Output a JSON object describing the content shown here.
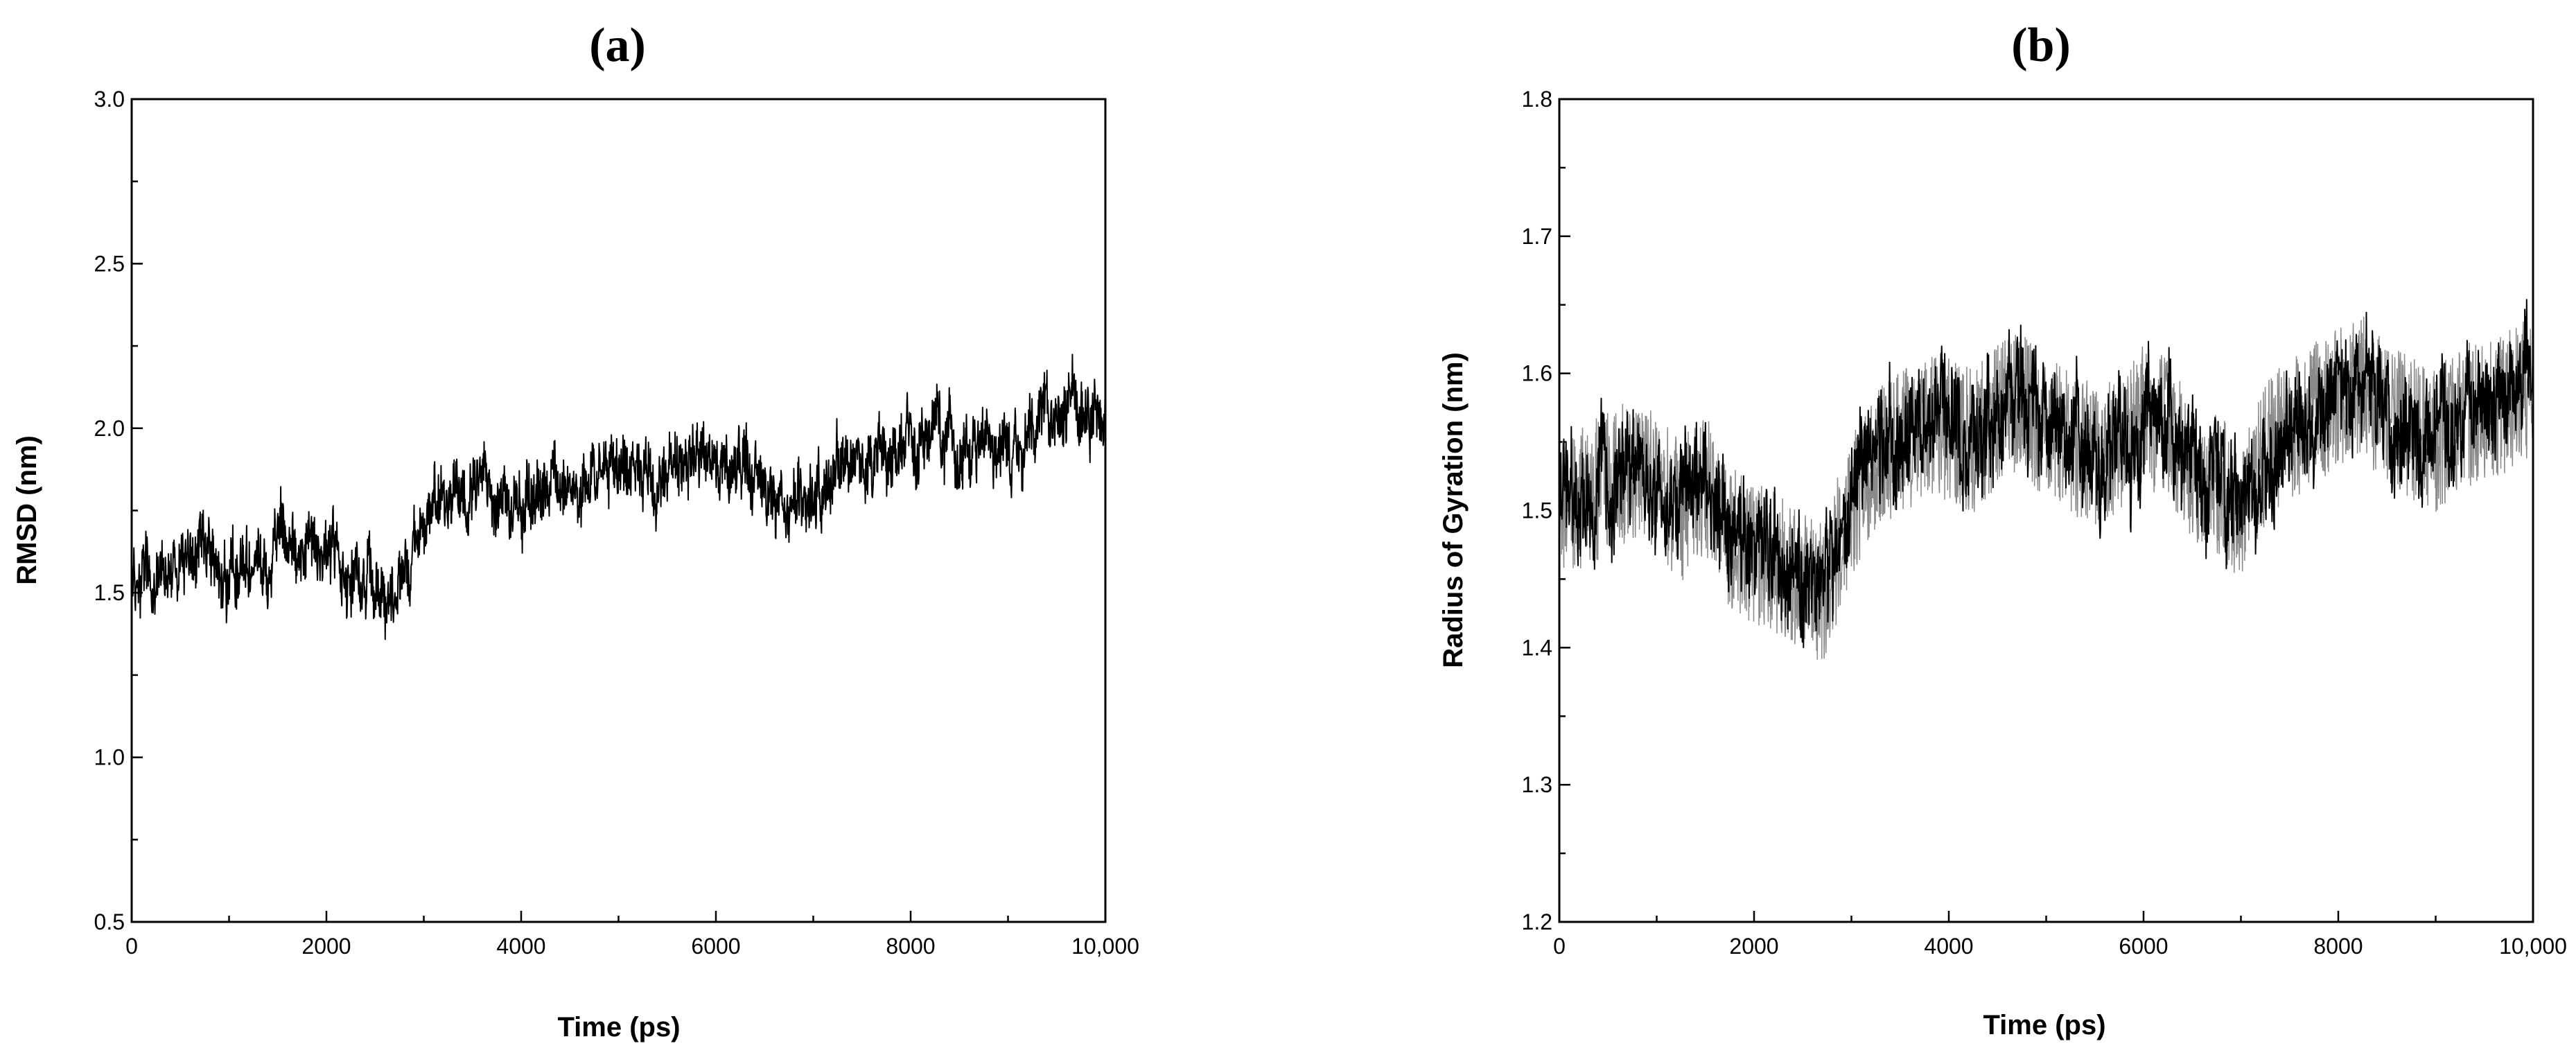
{
  "chart_data": [
    {
      "type": "line",
      "panel_label": "(a)",
      "title": "",
      "xlabel": "Time (ps)",
      "ylabel": "RMSD (nm)",
      "xlim": [
        0,
        10000
      ],
      "ylim": [
        0.5,
        3.0
      ],
      "x_ticks": [
        0,
        2000,
        4000,
        6000,
        8000,
        10000
      ],
      "x_tick_labels": [
        "0",
        "2000",
        "4000",
        "6000",
        "8000",
        "10,000"
      ],
      "y_ticks": [
        0.5,
        1.0,
        1.5,
        2.0,
        2.5,
        3.0
      ],
      "y_tick_labels": [
        "0.5",
        "1.0",
        "1.5",
        "2.0",
        "2.5",
        "3.0"
      ],
      "grid": false,
      "legend": "none",
      "color": "#000000",
      "series": [
        {
          "x": [
            0,
            250,
            500,
            750,
            1000,
            1250,
            1500,
            1750,
            2000,
            2250,
            2500,
            2600,
            2750,
            3000,
            3250,
            3500,
            3750,
            4000,
            4250,
            4500,
            4750,
            5000,
            5250,
            5500,
            5750,
            6000,
            6250,
            6500,
            6750,
            7000,
            7250,
            7500,
            7750,
            8000,
            8250,
            8500,
            8750,
            9000,
            9250,
            9500,
            9750,
            10000
          ],
          "y": [
            1.55,
            1.55,
            1.58,
            1.57,
            1.55,
            1.6,
            1.67,
            1.65,
            1.62,
            1.58,
            1.5,
            1.45,
            1.55,
            1.68,
            1.82,
            1.85,
            1.8,
            1.78,
            1.82,
            1.85,
            1.83,
            1.86,
            1.84,
            1.88,
            1.9,
            1.92,
            1.9,
            1.85,
            1.75,
            1.8,
            1.85,
            1.9,
            1.92,
            1.95,
            1.98,
            1.95,
            1.97,
            1.95,
            2.0,
            2.02,
            2.05,
            2.05
          ],
          "noise_amplitude": 0.09
        }
      ]
    },
    {
      "type": "line",
      "panel_label": "(b)",
      "title": "",
      "xlabel": "Time (ps)",
      "ylabel": "Radius of Gyration (nm)",
      "xlim": [
        0,
        10000
      ],
      "ylim": [
        1.2,
        1.8
      ],
      "x_ticks": [
        0,
        2000,
        4000,
        6000,
        8000,
        10000
      ],
      "x_tick_labels": [
        "0",
        "2000",
        "4000",
        "6000",
        "8000",
        "10,000"
      ],
      "y_ticks": [
        1.2,
        1.3,
        1.4,
        1.5,
        1.6,
        1.7,
        1.8
      ],
      "y_tick_labels": [
        "1.2",
        "1.3",
        "1.4",
        "1.5",
        "1.6",
        "1.7",
        "1.8"
      ],
      "grid": false,
      "legend": "none",
      "color": "#000000",
      "series": [
        {
          "x": [
            0,
            250,
            500,
            750,
            1000,
            1250,
            1500,
            1750,
            2000,
            2250,
            2500,
            2700,
            3000,
            3250,
            3500,
            3750,
            4000,
            4250,
            4500,
            4750,
            5000,
            5250,
            5500,
            5750,
            6000,
            6250,
            6500,
            6750,
            7000,
            7250,
            7500,
            7750,
            8000,
            8250,
            8500,
            8750,
            9000,
            9250,
            9500,
            9750,
            10000
          ],
          "y": [
            1.5,
            1.51,
            1.52,
            1.53,
            1.52,
            1.5,
            1.52,
            1.48,
            1.47,
            1.46,
            1.45,
            1.44,
            1.5,
            1.54,
            1.55,
            1.56,
            1.56,
            1.55,
            1.57,
            1.58,
            1.56,
            1.55,
            1.54,
            1.55,
            1.57,
            1.56,
            1.53,
            1.52,
            1.5,
            1.54,
            1.56,
            1.57,
            1.58,
            1.59,
            1.57,
            1.56,
            1.55,
            1.57,
            1.57,
            1.58,
            1.59
          ],
          "noise_amplitude": 0.035
        }
      ]
    }
  ]
}
